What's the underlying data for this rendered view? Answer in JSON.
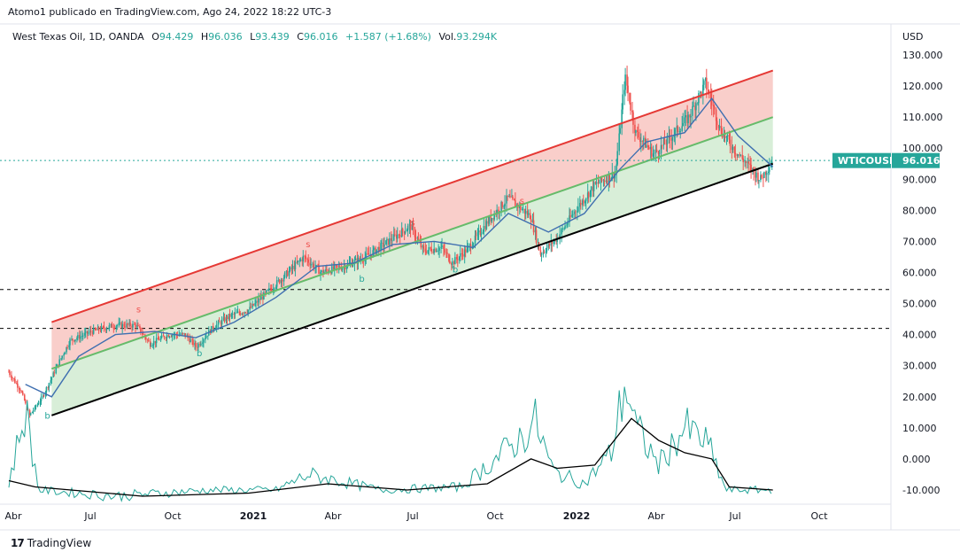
{
  "attribution": "Atomo1 publicado en TradingView.com, Ago 24, 2022 18:22 UTC-3",
  "legend": {
    "symbol": "West Texas Oil, 1D, OANDA",
    "open_label": "O",
    "open": "94.429",
    "high_label": "H",
    "high": "96.036",
    "low_label": "L",
    "low": "93.439",
    "close_label": "C",
    "close": "96.016",
    "change": "+1.587 (+1.68%)",
    "volume_label": "Vol.",
    "volume": "93.294K"
  },
  "price_axis": {
    "currency": "USD",
    "ticks": [
      "130.000",
      "120.000",
      "110.000",
      "100.000",
      "90.000",
      "80.000",
      "70.000",
      "60.000",
      "50.000",
      "40.000",
      "30.000",
      "20.000",
      "10.000",
      "0.000",
      "-10.000"
    ]
  },
  "price_tag": {
    "symbol": "WTICOUSD",
    "price": "96.016",
    "color": "#26a69a"
  },
  "time_axis": {
    "ticks": [
      {
        "label": "Abr",
        "bold": false
      },
      {
        "label": "Jul",
        "bold": false
      },
      {
        "label": "Oct",
        "bold": false
      },
      {
        "label": "2021",
        "bold": true
      },
      {
        "label": "Abr",
        "bold": false
      },
      {
        "label": "Jul",
        "bold": false
      },
      {
        "label": "Oct",
        "bold": false
      },
      {
        "label": "2022",
        "bold": true
      },
      {
        "label": "Abr",
        "bold": false
      },
      {
        "label": "Jul",
        "bold": false
      },
      {
        "label": "Oct",
        "bold": false
      }
    ]
  },
  "footer": {
    "brand": "TradingView",
    "logo": "17"
  },
  "chart_data": {
    "type": "line",
    "title": "West Texas Oil, 1D, OANDA",
    "ylabel": "USD",
    "ylim": [
      -15,
      135
    ],
    "scale": "linear",
    "grid": false,
    "x_start": "2020-04-01",
    "x_end": "2022-10-15",
    "current_price": 96.016,
    "colors": {
      "upper_channel": "#e53935",
      "mid_channel": "#66bb6a",
      "lower_channel": "#000000",
      "upper_fill": "#f8c9c4",
      "lower_fill": "#d4ecd4",
      "ma": "#3f6fb0",
      "up": "#26a69a",
      "down": "#ef5350",
      "oscillator": "#26a69a",
      "osc_average": "#000000"
    },
    "channel": {
      "start_date": "2020-05-20",
      "end_date": "2022-08-24",
      "upper": [
        44,
        125
      ],
      "mid": [
        29,
        110
      ],
      "lower": [
        14,
        95
      ]
    },
    "horizontal_levels": [
      54.5,
      42
    ],
    "price_series": [
      {
        "date": "2020-04-01",
        "value": 28
      },
      {
        "date": "2020-04-15",
        "value": 22
      },
      {
        "date": "2020-04-25",
        "value": 14
      },
      {
        "date": "2020-05-10",
        "value": 20
      },
      {
        "date": "2020-05-25",
        "value": 29
      },
      {
        "date": "2020-06-10",
        "value": 38
      },
      {
        "date": "2020-07-05",
        "value": 41
      },
      {
        "date": "2020-08-01",
        "value": 43
      },
      {
        "date": "2020-08-25",
        "value": 43
      },
      {
        "date": "2020-09-10",
        "value": 37
      },
      {
        "date": "2020-10-01",
        "value": 40
      },
      {
        "date": "2020-10-20",
        "value": 40
      },
      {
        "date": "2020-11-02",
        "value": 36
      },
      {
        "date": "2020-11-20",
        "value": 42
      },
      {
        "date": "2020-12-10",
        "value": 46
      },
      {
        "date": "2021-01-01",
        "value": 48
      },
      {
        "date": "2021-01-20",
        "value": 53
      },
      {
        "date": "2021-02-15",
        "value": 60
      },
      {
        "date": "2021-03-05",
        "value": 65
      },
      {
        "date": "2021-03-25",
        "value": 60
      },
      {
        "date": "2021-04-20",
        "value": 62
      },
      {
        "date": "2021-05-15",
        "value": 65
      },
      {
        "date": "2021-06-10",
        "value": 70
      },
      {
        "date": "2021-07-05",
        "value": 75
      },
      {
        "date": "2021-07-20",
        "value": 67
      },
      {
        "date": "2021-08-10",
        "value": 68
      },
      {
        "date": "2021-08-22",
        "value": 63
      },
      {
        "date": "2021-09-10",
        "value": 68
      },
      {
        "date": "2021-10-01",
        "value": 76
      },
      {
        "date": "2021-10-25",
        "value": 84
      },
      {
        "date": "2021-11-20",
        "value": 78
      },
      {
        "date": "2021-12-01",
        "value": 66
      },
      {
        "date": "2021-12-20",
        "value": 71
      },
      {
        "date": "2022-01-10",
        "value": 80
      },
      {
        "date": "2022-02-01",
        "value": 88
      },
      {
        "date": "2022-02-25",
        "value": 92
      },
      {
        "date": "2022-03-08",
        "value": 123
      },
      {
        "date": "2022-03-20",
        "value": 105
      },
      {
        "date": "2022-04-10",
        "value": 98
      },
      {
        "date": "2022-05-01",
        "value": 104
      },
      {
        "date": "2022-05-20",
        "value": 110
      },
      {
        "date": "2022-06-08",
        "value": 121
      },
      {
        "date": "2022-06-25",
        "value": 106
      },
      {
        "date": "2022-07-10",
        "value": 100
      },
      {
        "date": "2022-07-25",
        "value": 95
      },
      {
        "date": "2022-08-10",
        "value": 90
      },
      {
        "date": "2022-08-24",
        "value": 96.016
      }
    ],
    "ma_series": [
      {
        "date": "2020-04-20",
        "value": 24
      },
      {
        "date": "2020-05-20",
        "value": 20
      },
      {
        "date": "2020-06-20",
        "value": 33
      },
      {
        "date": "2020-08-01",
        "value": 40
      },
      {
        "date": "2020-09-15",
        "value": 41
      },
      {
        "date": "2020-11-01",
        "value": 39
      },
      {
        "date": "2020-12-15",
        "value": 44
      },
      {
        "date": "2021-02-01",
        "value": 52
      },
      {
        "date": "2021-03-20",
        "value": 62
      },
      {
        "date": "2021-05-01",
        "value": 63
      },
      {
        "date": "2021-06-15",
        "value": 69
      },
      {
        "date": "2021-08-01",
        "value": 70
      },
      {
        "date": "2021-09-15",
        "value": 68
      },
      {
        "date": "2021-10-25",
        "value": 79
      },
      {
        "date": "2021-12-10",
        "value": 73
      },
      {
        "date": "2022-01-20",
        "value": 79
      },
      {
        "date": "2022-03-01",
        "value": 93
      },
      {
        "date": "2022-04-01",
        "value": 102
      },
      {
        "date": "2022-05-15",
        "value": 105
      },
      {
        "date": "2022-06-15",
        "value": 116
      },
      {
        "date": "2022-07-15",
        "value": 104
      },
      {
        "date": "2022-08-24",
        "value": 94
      }
    ],
    "signals": [
      {
        "date": "2020-05-15",
        "label": "b",
        "value": 17
      },
      {
        "date": "2020-08-28",
        "label": "s",
        "value": 46
      },
      {
        "date": "2020-11-05",
        "label": "b",
        "value": 37
      },
      {
        "date": "2021-03-10",
        "label": "s",
        "value": 67
      },
      {
        "date": "2021-05-10",
        "label": "b",
        "value": 61
      },
      {
        "date": "2021-07-08",
        "label": "s",
        "value": 74
      },
      {
        "date": "2021-08-25",
        "label": "b",
        "value": 64
      },
      {
        "date": "2021-11-10",
        "label": "s",
        "value": 81
      }
    ],
    "oscillator": {
      "values": [
        {
          "date": "2020-04-01",
          "value": -8
        },
        {
          "date": "2020-04-20",
          "value": 16
        },
        {
          "date": "2020-05-05",
          "value": -10
        },
        {
          "date": "2020-08-01",
          "value": -12
        },
        {
          "date": "2020-11-15",
          "value": -10
        },
        {
          "date": "2021-02-01",
          "value": -10
        },
        {
          "date": "2021-03-10",
          "value": -5
        },
        {
          "date": "2021-06-01",
          "value": -10
        },
        {
          "date": "2021-09-01",
          "value": -9
        },
        {
          "date": "2021-11-10",
          "value": 7
        },
        {
          "date": "2021-11-25",
          "value": 12
        },
        {
          "date": "2021-12-15",
          "value": -4
        },
        {
          "date": "2022-01-20",
          "value": -8
        },
        {
          "date": "2022-02-20",
          "value": 2
        },
        {
          "date": "2022-03-08",
          "value": 25
        },
        {
          "date": "2022-03-20",
          "value": 10
        },
        {
          "date": "2022-04-15",
          "value": -2
        },
        {
          "date": "2022-05-15",
          "value": 10
        },
        {
          "date": "2022-06-10",
          "value": 5
        },
        {
          "date": "2022-07-01",
          "value": -10
        },
        {
          "date": "2022-08-24",
          "value": -10
        }
      ],
      "average": [
        {
          "date": "2020-04-01",
          "value": -7
        },
        {
          "date": "2020-05-01",
          "value": -9
        },
        {
          "date": "2020-09-01",
          "value": -12
        },
        {
          "date": "2021-01-01",
          "value": -11
        },
        {
          "date": "2021-04-01",
          "value": -8
        },
        {
          "date": "2021-07-01",
          "value": -10
        },
        {
          "date": "2021-10-01",
          "value": -8
        },
        {
          "date": "2021-11-20",
          "value": 0
        },
        {
          "date": "2021-12-20",
          "value": -3
        },
        {
          "date": "2022-02-01",
          "value": -2
        },
        {
          "date": "2022-03-15",
          "value": 13
        },
        {
          "date": "2022-04-15",
          "value": 6
        },
        {
          "date": "2022-05-15",
          "value": 2
        },
        {
          "date": "2022-06-15",
          "value": 0
        },
        {
          "date": "2022-07-05",
          "value": -9
        },
        {
          "date": "2022-08-24",
          "value": -10
        }
      ]
    }
  }
}
